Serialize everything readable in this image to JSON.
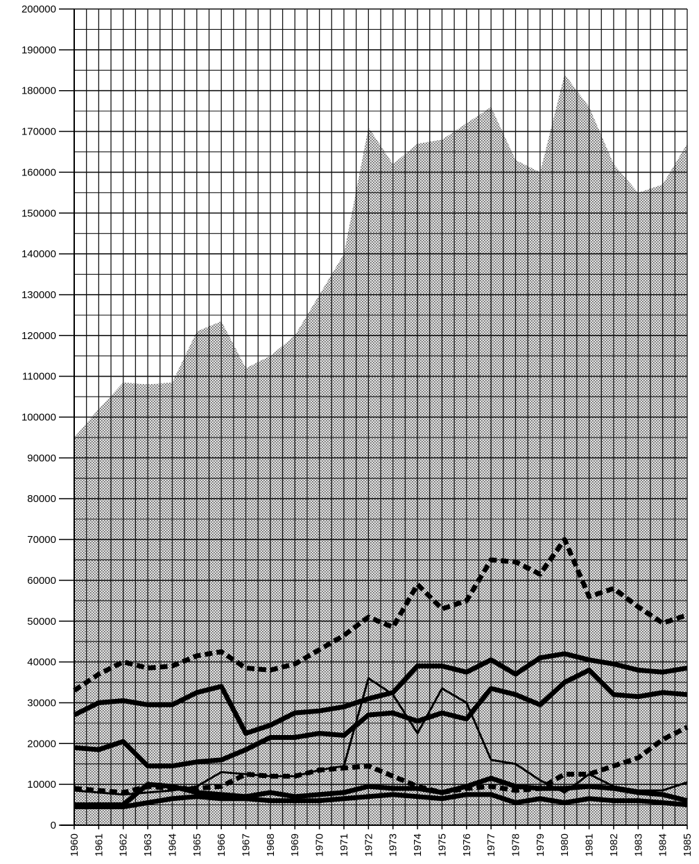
{
  "chart_data": {
    "type": "area",
    "title": "",
    "xlabel": "",
    "ylabel": "",
    "x": [
      "1960",
      "1961",
      "1962",
      "1963",
      "1964",
      "1965",
      "1966",
      "1967",
      "1968",
      "1969",
      "1970",
      "1971",
      "1972",
      "1973",
      "1974",
      "1975",
      "1976",
      "1977",
      "1978",
      "1979",
      "1980",
      "1981",
      "1982",
      "1983",
      "1984",
      "1985"
    ],
    "ylim": [
      0,
      200000
    ],
    "y_ticks": [
      0,
      10000,
      20000,
      30000,
      40000,
      50000,
      60000,
      70000,
      80000,
      90000,
      100000,
      110000,
      120000,
      130000,
      140000,
      150000,
      160000,
      170000,
      180000,
      190000,
      200000
    ],
    "y_tick_labels": [
      "0",
      "10000",
      "20000",
      "30000",
      "40000",
      "50000",
      "60000",
      "70000",
      "80000",
      "90000",
      "100000",
      "110000",
      "120000",
      "130000",
      "140000",
      "150000",
      "160000",
      "170000",
      "180000",
      "190000",
      "200000"
    ],
    "grid": true,
    "total_area": {
      "values": [
        95000,
        102000,
        108500,
        108000,
        108500,
        121000,
        123500,
        112000,
        115000,
        120000,
        130000,
        140000,
        171000,
        162000,
        167000,
        168000,
        172000,
        176000,
        163000,
        160000,
        184000,
        176000,
        162000,
        155000,
        157000,
        167000
      ],
      "fill": "#d8d8d8"
    },
    "series": [
      {
        "style": "dashed",
        "values": [
          33000,
          37000,
          40000,
          38500,
          39000,
          41500,
          42500,
          38500,
          38000,
          39500,
          43000,
          46500,
          51000,
          48500,
          59000,
          53000,
          55000,
          65000,
          64500,
          61500,
          70000,
          56000,
          58000,
          53500,
          49500,
          51500
        ]
      },
      {
        "style": "solid",
        "values": [
          27000,
          30000,
          30500,
          29500,
          29500,
          32500,
          34000,
          22500,
          24500,
          27500,
          28000,
          29000,
          31000,
          32500,
          39000,
          39000,
          37500,
          40500,
          37000,
          41000,
          42000,
          40500,
          39500,
          38000,
          37500,
          38500
        ]
      },
      {
        "style": "solid",
        "values": [
          19000,
          18500,
          20500,
          14500,
          14500,
          15500,
          16000,
          18500,
          21500,
          21500,
          22500,
          22000,
          27000,
          27500,
          25500,
          27500,
          26000,
          33500,
          32000,
          29500,
          35000,
          38000,
          32000,
          31500,
          32500,
          32000
        ]
      },
      {
        "style": "thin",
        "values": [
          8500,
          8000,
          7500,
          8000,
          8500,
          9500,
          13000,
          12500,
          12000,
          12000,
          13500,
          14500,
          36000,
          32000,
          22500,
          33500,
          30000,
          16000,
          15000,
          11000,
          8000,
          12500,
          9500,
          8500,
          8500,
          10500
        ]
      },
      {
        "style": "dashed",
        "values": [
          9000,
          8500,
          8000,
          9500,
          9000,
          9000,
          9500,
          12500,
          12000,
          12000,
          13500,
          14000,
          14500,
          12000,
          9500,
          8000,
          9000,
          9500,
          8500,
          9000,
          12500,
          12500,
          14500,
          16500,
          21000,
          24000
        ]
      },
      {
        "style": "solid",
        "values": [
          5000,
          5000,
          5000,
          10000,
          9500,
          8000,
          7500,
          7000,
          8000,
          7000,
          7500,
          8000,
          9500,
          9000,
          9000,
          8000,
          9500,
          11500,
          9500,
          9000,
          9000,
          9500,
          9000,
          8000,
          7500,
          6000
        ]
      },
      {
        "style": "solid",
        "values": [
          4500,
          4500,
          4500,
          5500,
          6500,
          7000,
          6500,
          6500,
          6000,
          6000,
          6000,
          6500,
          7000,
          7500,
          7000,
          6500,
          7500,
          7500,
          5500,
          6500,
          5500,
          6500,
          6000,
          6000,
          5500,
          5000
        ]
      }
    ]
  }
}
